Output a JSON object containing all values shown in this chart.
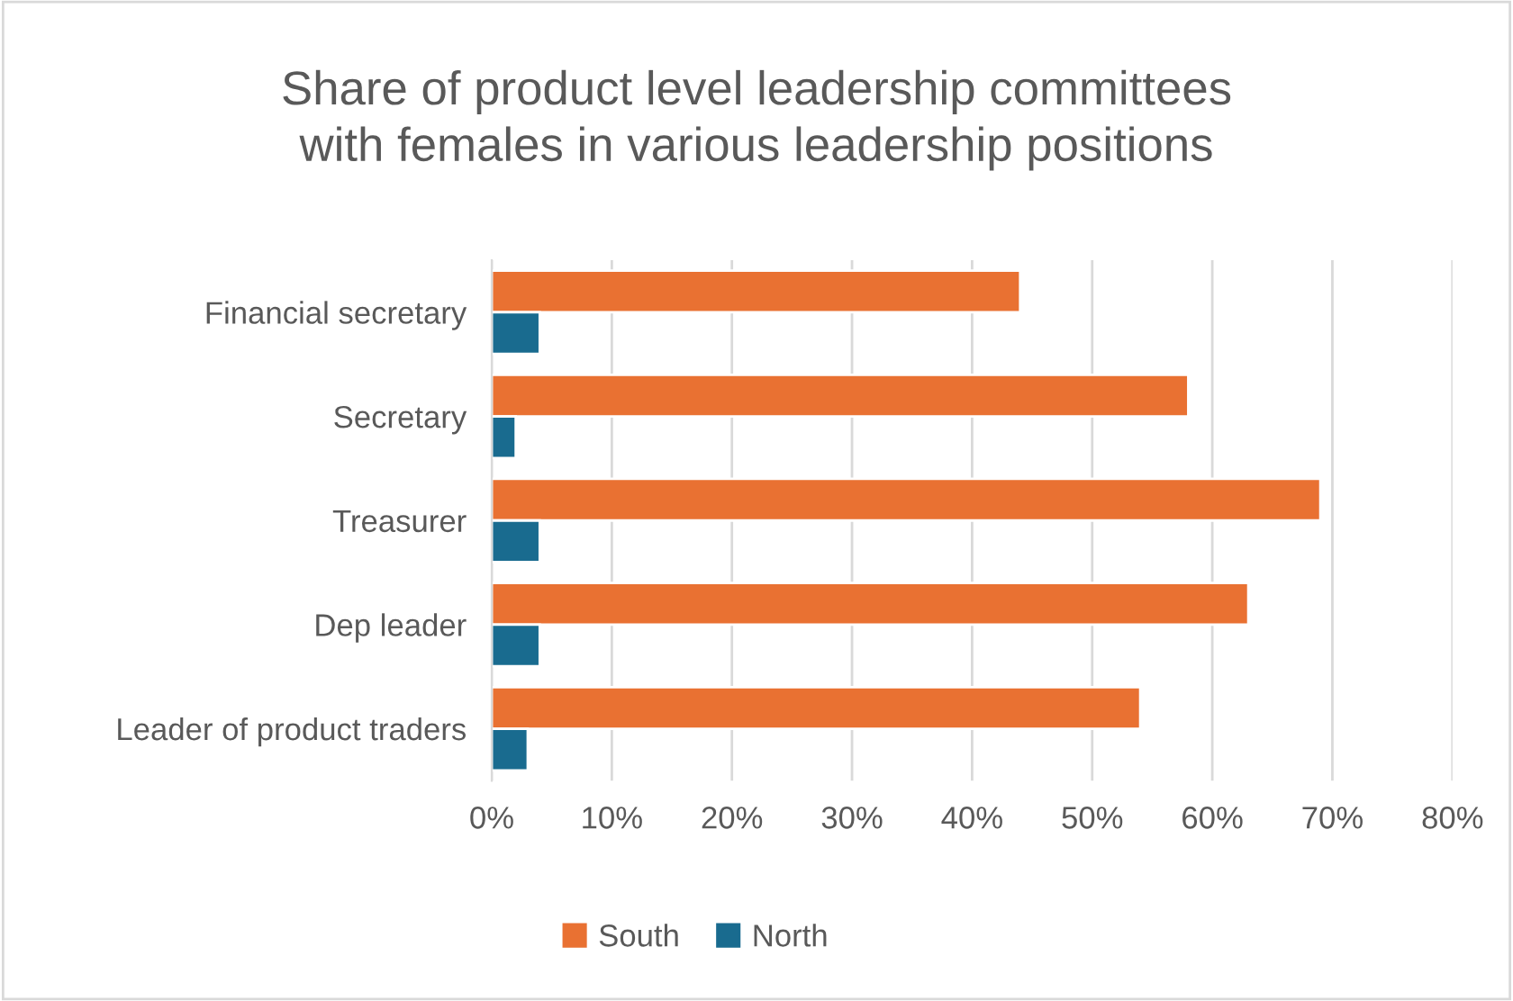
{
  "chart_data": {
    "type": "bar",
    "orientation": "horizontal",
    "title": "Share of product level leadership committees\nwith females in various leadership positions",
    "categories": [
      "Financial secretary",
      "Secretary",
      "Treasurer",
      "Dep leader",
      "Leader of product traders"
    ],
    "series": [
      {
        "name": "South",
        "color": "#e97132",
        "values": [
          44,
          58,
          69,
          63,
          54
        ]
      },
      {
        "name": "North",
        "color": "#196b8f",
        "values": [
          4,
          2,
          4,
          4,
          3
        ]
      }
    ],
    "xlim": [
      0,
      80
    ],
    "xticks": [
      {
        "value": 0,
        "label": "0%"
      },
      {
        "value": 10,
        "label": "10%"
      },
      {
        "value": 20,
        "label": "20%"
      },
      {
        "value": 30,
        "label": "30%"
      },
      {
        "value": 40,
        "label": "40%"
      },
      {
        "value": 50,
        "label": "50%"
      },
      {
        "value": 60,
        "label": "60%"
      },
      {
        "value": 70,
        "label": "70%"
      },
      {
        "value": 80,
        "label": "80%"
      }
    ],
    "grid": "x",
    "legend": "bottom"
  }
}
